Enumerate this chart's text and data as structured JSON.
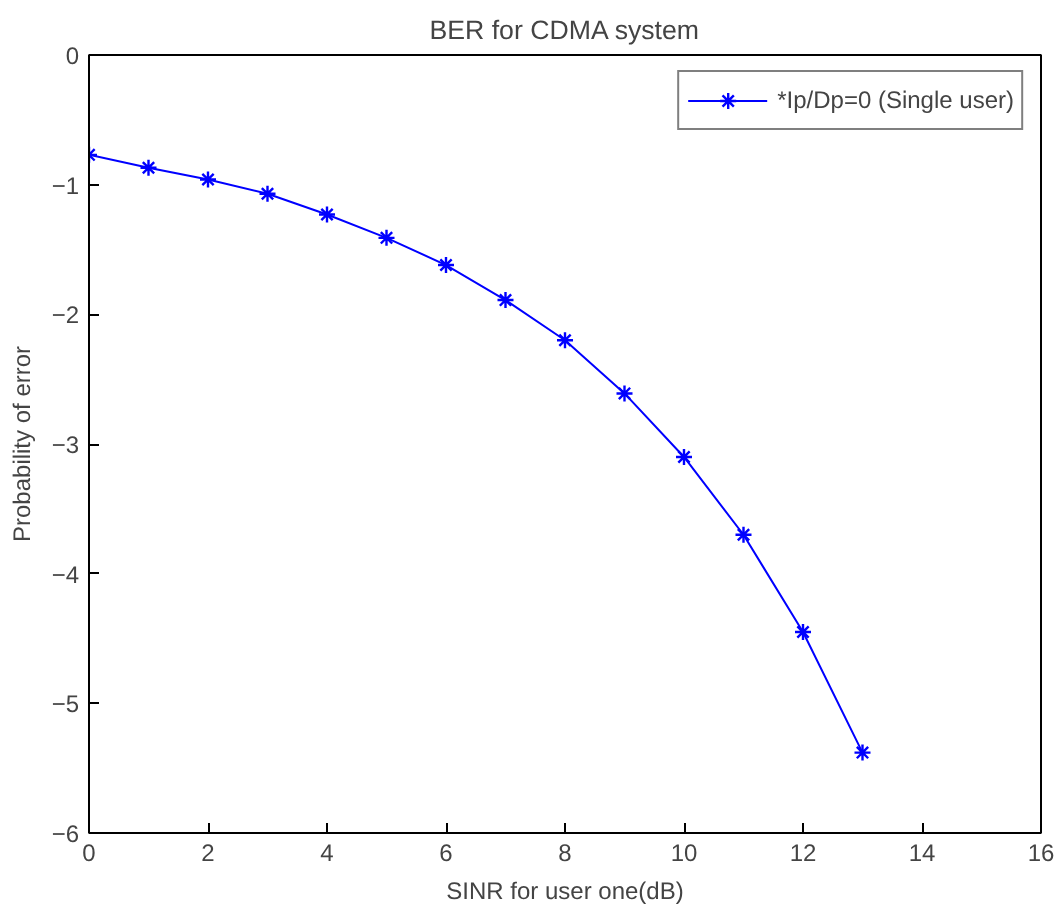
{
  "chart_data": {
    "type": "line",
    "title": "BER for CDMA system",
    "xlabel": "SINR for user one(dB)",
    "ylabel": "Probability of error",
    "x": [
      0,
      1,
      2,
      3,
      4,
      5,
      6,
      7,
      8,
      9,
      10,
      11,
      12,
      13
    ],
    "series": [
      {
        "name": "*Ip/Dp=0 (Single user)",
        "color": "#0000ff",
        "values": [
          -0.77,
          -0.87,
          -0.96,
          -1.07,
          -1.23,
          -1.41,
          -1.62,
          -1.89,
          -2.2,
          -2.61,
          -3.1,
          -3.7,
          -4.45,
          -5.38
        ]
      }
    ],
    "xlim": [
      0,
      16
    ],
    "ylim": [
      -6,
      0
    ],
    "xticks": [
      0,
      2,
      4,
      6,
      8,
      10,
      12,
      14,
      16
    ],
    "yticks": [
      -6,
      -5,
      -4,
      -3,
      -2,
      -1,
      0
    ],
    "grid": false,
    "legend": "top right",
    "marker": "cross",
    "line_style": "solid"
  }
}
